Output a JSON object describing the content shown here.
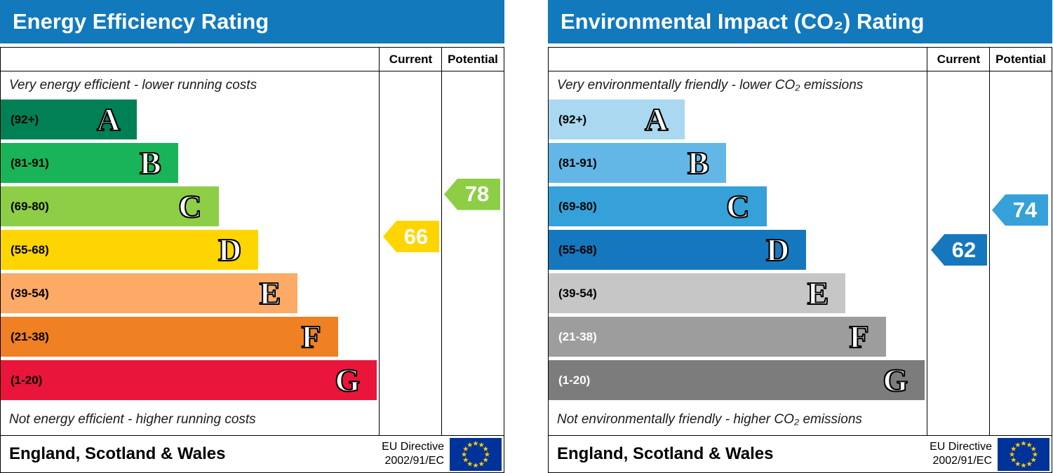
{
  "palette": {
    "header_bg": "#1279bd",
    "header_text": "#ffffff",
    "frame_border": "#000000",
    "eu_flag_blue": "#003399",
    "eu_flag_star": "#ffcc00"
  },
  "charts": [
    {
      "title": "Energy Efficiency Rating",
      "columns": {
        "current": "Current",
        "potential": "Potential"
      },
      "top_caption": "Very energy efficient - lower running costs",
      "bottom_caption": "Not energy efficient - higher running costs",
      "footer": {
        "region": "England, Scotland & Wales",
        "directive_line1": "EU Directive",
        "directive_line2": "2002/91/EC"
      },
      "chart_data": {
        "type": "bar",
        "subtype": "epc-rating-bands",
        "title": "Energy Efficiency Rating",
        "bands": [
          {
            "letter": "A",
            "range": "(92+)",
            "min": 92,
            "max": 100,
            "color": "#008054",
            "label_color": "#000000",
            "width_pct": 36.0
          },
          {
            "letter": "B",
            "range": "(81-91)",
            "min": 81,
            "max": 91,
            "color": "#19b459",
            "label_color": "#000000",
            "width_pct": 46.8
          },
          {
            "letter": "C",
            "range": "(69-80)",
            "min": 69,
            "max": 80,
            "color": "#8dce46",
            "label_color": "#000000",
            "width_pct": 57.5
          },
          {
            "letter": "D",
            "range": "(55-68)",
            "min": 55,
            "max": 68,
            "color": "#ffd500",
            "label_color": "#000000",
            "width_pct": 68.0
          },
          {
            "letter": "E",
            "range": "(39-54)",
            "min": 39,
            "max": 54,
            "color": "#fcaa65",
            "label_color": "#000000",
            "width_pct": 78.4
          },
          {
            "letter": "F",
            "range": "(21-38)",
            "min": 21,
            "max": 38,
            "color": "#ef8023",
            "label_color": "#000000",
            "width_pct": 89.0
          },
          {
            "letter": "G",
            "range": "(1-20)",
            "min": 1,
            "max": 20,
            "color": "#e9153b",
            "label_color": "#000000",
            "width_pct": 99.3
          }
        ],
        "current": {
          "value": 66,
          "band": "D",
          "color": "#ffd500"
        },
        "potential": {
          "value": 78,
          "band": "C",
          "color": "#8dce46"
        }
      }
    },
    {
      "title": "Environmental Impact (CO₂) Rating",
      "columns": {
        "current": "Current",
        "potential": "Potential"
      },
      "top_caption": "Very environmentally friendly - lower CO₂ emissions",
      "bottom_caption": "Not environmentally friendly - higher CO₂ emissions",
      "footer": {
        "region": "England, Scotland & Wales",
        "directive_line1": "EU Directive",
        "directive_line2": "2002/91/EC"
      },
      "chart_data": {
        "type": "bar",
        "subtype": "epc-rating-bands",
        "title": "Environmental Impact (CO₂) Rating",
        "bands": [
          {
            "letter": "A",
            "range": "(92+)",
            "min": 92,
            "max": 100,
            "color": "#a9d8f0",
            "label_color": "#000000",
            "width_pct": 36.0
          },
          {
            "letter": "B",
            "range": "(81-91)",
            "min": 81,
            "max": 91,
            "color": "#63b7e6",
            "label_color": "#000000",
            "width_pct": 46.8
          },
          {
            "letter": "C",
            "range": "(69-80)",
            "min": 69,
            "max": 80,
            "color": "#35a1d8",
            "label_color": "#000000",
            "width_pct": 57.5
          },
          {
            "letter": "D",
            "range": "(55-68)",
            "min": 55,
            "max": 68,
            "color": "#1577bd",
            "label_color": "#000000",
            "width_pct": 68.0
          },
          {
            "letter": "E",
            "range": "(39-54)",
            "min": 39,
            "max": 54,
            "color": "#c6c6c6",
            "label_color": "#000000",
            "width_pct": 78.4
          },
          {
            "letter": "F",
            "range": "(21-38)",
            "min": 21,
            "max": 38,
            "color": "#9d9d9d",
            "label_color": "#ffffff",
            "width_pct": 89.0
          },
          {
            "letter": "G",
            "range": "(1-20)",
            "min": 1,
            "max": 20,
            "color": "#7c7c7c",
            "label_color": "#ffffff",
            "width_pct": 99.3
          }
        ],
        "current": {
          "value": 62,
          "band": "D",
          "color": "#1577bd"
        },
        "potential": {
          "value": 74,
          "band": "C",
          "color": "#35a1d8"
        }
      }
    }
  ]
}
